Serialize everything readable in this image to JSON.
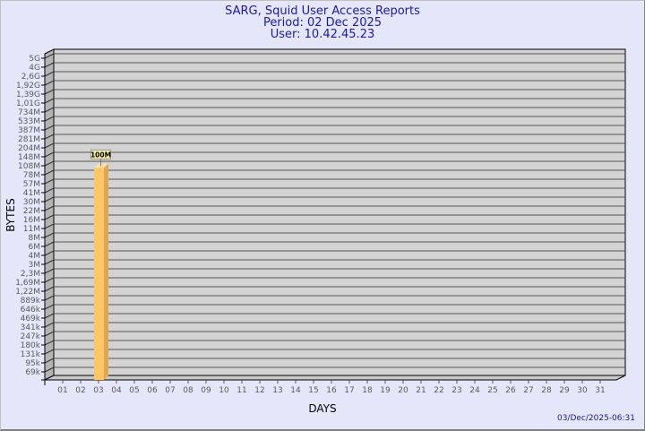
{
  "title_lines": [
    "SARG, Squid User Access Reports",
    "Period: 02 Dec 2025",
    "User: 10.42.45.23"
  ],
  "timestamp": "03/Dec/2025-06:31",
  "colors": {
    "background": "#e6e6fa",
    "plot": "#d3d3d3",
    "bar": "#ffc566",
    "bar_side": "#e0a850",
    "label_box": "#f5f0a0",
    "title": "#1a1aa6"
  },
  "chart_data": {
    "type": "bar",
    "title": "SARG, Squid User Access Reports",
    "xlabel": "DAYS",
    "ylabel": "BYTES",
    "y_scale": "log",
    "grid": true,
    "categories": [
      "01",
      "02",
      "03",
      "04",
      "05",
      "06",
      "07",
      "08",
      "09",
      "10",
      "11",
      "12",
      "13",
      "14",
      "15",
      "16",
      "17",
      "18",
      "19",
      "20",
      "21",
      "22",
      "23",
      "24",
      "25",
      "26",
      "27",
      "28",
      "29",
      "30",
      "31"
    ],
    "values": [
      0,
      100000000,
      0,
      0,
      0,
      0,
      0,
      0,
      0,
      0,
      0,
      0,
      0,
      0,
      0,
      0,
      0,
      0,
      0,
      0,
      0,
      0,
      0,
      0,
      0,
      0,
      0,
      0,
      0,
      0,
      0
    ],
    "data_labels": {
      "02": "100M"
    },
    "y_tick_labels": [
      "5G",
      "4G",
      "2,6G",
      "1,92G",
      "1,39G",
      "1,01G",
      "734M",
      "533M",
      "387M",
      "281M",
      "204M",
      "148M",
      "108M",
      "78M",
      "57M",
      "41M",
      "30M",
      "22M",
      "16M",
      "11M",
      "8M",
      "6M",
      "4M",
      "3M",
      "2,3M",
      "1,69M",
      "1,22M",
      "889k",
      "646k",
      "469k",
      "341k",
      "247k",
      "180k",
      "131k",
      "95k",
      "69k"
    ]
  }
}
